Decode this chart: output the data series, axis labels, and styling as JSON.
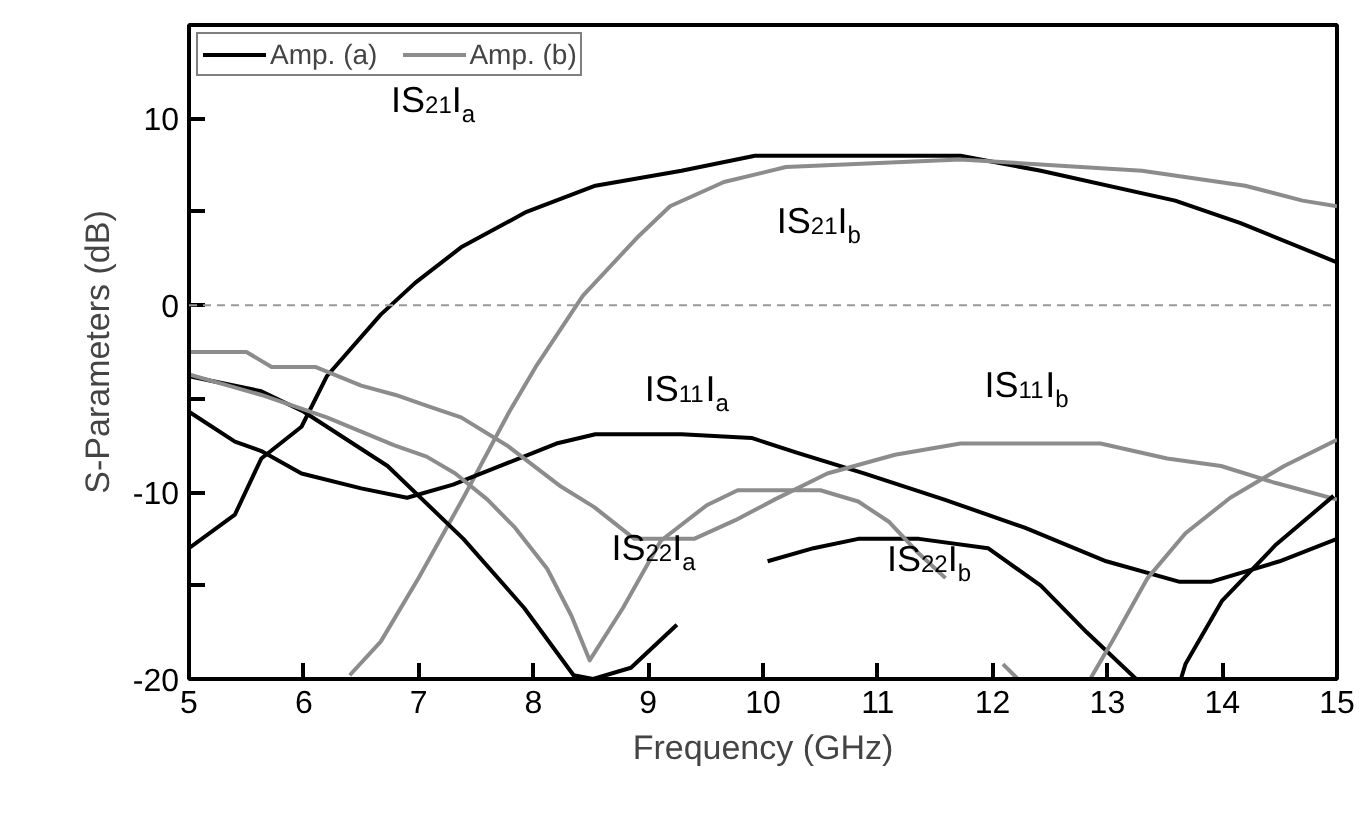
{
  "chart_data": {
    "type": "line",
    "xlabel": "Frequency (GHz)",
    "ylabel": "S-Parameters (dB)",
    "xlim": [
      5,
      15
    ],
    "ylim": [
      -20,
      15
    ],
    "xticks": [
      5,
      6,
      7,
      8,
      9,
      10,
      11,
      12,
      13,
      14,
      15
    ],
    "yticks": [
      -20,
      {
        "value": -15,
        "label": null
      },
      -10,
      {
        "value": -5,
        "label": null
      },
      0,
      {
        "value": 5,
        "label": null
      },
      10
    ],
    "grid": false,
    "legend": "top left",
    "line_style": "solid",
    "marker": "none",
    "ref_lines": [
      {
        "axis": "y",
        "value": 0,
        "color": "#999999",
        "line_style": "dashed"
      }
    ],
    "series": [
      {
        "name": "Amp. (a)",
        "color": "#000000",
        "x": [
          5,
          5.4,
          5.63,
          5.98,
          6.2,
          6.67,
          6.97,
          7.37,
          7.94,
          8.54,
          9.29,
          9.93,
          11.72,
          12.42,
          13.59,
          14.16,
          15
        ],
        "values": [
          -13,
          -11.2,
          -8.2,
          -6.5,
          -3.8,
          -0.5,
          1.2,
          3.1,
          5.0,
          6.4,
          7.2,
          8.0,
          8.0,
          7.2,
          5.6,
          4.4,
          2.3
        ]
      },
      {
        "name": "Amp. (b)",
        "color": "#8c8c8c",
        "x": [
          6.4,
          6.67,
          7.0,
          7.39,
          7.79,
          8.03,
          8.43,
          8.9,
          9.19,
          9.66,
          10.0,
          10.2,
          11.72,
          13.3,
          14.2,
          14.7,
          15
        ],
        "values": [
          -19.8,
          -18,
          -14.6,
          -10.3,
          -5.7,
          -3.2,
          0.5,
          3.6,
          5.3,
          6.6,
          7.1,
          7.4,
          7.8,
          7.2,
          6.4,
          5.6,
          5.3
        ]
      },
      {
        "color": "#000000",
        "x": [
          5,
          5.4,
          5.63,
          5.98,
          6.5,
          6.9,
          7.3,
          7.75,
          8.2,
          8.54,
          9.29,
          9.9,
          10.3,
          10.88,
          11.58,
          12.28,
          12.99,
          13.63,
          13.9,
          14.5,
          15
        ],
        "values": [
          -5.7,
          -7.3,
          -7.8,
          -9.0,
          -9.8,
          -10.3,
          -9.6,
          -8.5,
          -7.4,
          -6.9,
          -6.9,
          -7.1,
          -7.9,
          -9.0,
          -10.4,
          -11.9,
          -13.7,
          -14.8,
          -14.8,
          -13.7,
          -12.5
        ]
      },
      {
        "color": "#8c8c8c",
        "x": [
          5,
          5.5,
          5.72,
          6.1,
          6.5,
          6.8,
          7.08,
          7.37,
          7.77,
          8.24,
          8.53,
          8.88,
          9.4,
          9.76,
          10.1,
          10.56,
          11.15,
          11.72,
          12.94,
          13.52,
          13.99,
          14.46,
          15
        ],
        "values": [
          -2.5,
          -2.5,
          -3.3,
          -3.3,
          -4.3,
          -4.8,
          -5.4,
          -6.0,
          -7.5,
          -9.7,
          -10.8,
          -12.5,
          -12.5,
          -11.5,
          -10.4,
          -9.0,
          -8.0,
          -7.4,
          -7.4,
          -8.2,
          -8.6,
          -9.5,
          -10.4
        ]
      },
      {
        "color": "#000000",
        "x": [
          5,
          5.63,
          6.0,
          6.73,
          7.39,
          7.92,
          8.35,
          8.52,
          8.85,
          9.25,
          9.6,
          10.04,
          10.44,
          10.83,
          11.36,
          11.96,
          12.42,
          12.82,
          13.25,
          13.64,
          13.68,
          14.0,
          14.47,
          14.97
        ],
        "values": [
          -3.8,
          -4.6,
          -5.7,
          -8.6,
          -12.5,
          -16.2,
          -19.8,
          -20,
          -19.4,
          -17.1,
          null,
          -13.7,
          -13.0,
          -12.5,
          -12.5,
          -13.0,
          -15.0,
          -17.5,
          -20,
          -20,
          -19.2,
          -15.8,
          -12.8,
          -10.2
        ]
      },
      {
        "color": "#8c8c8c",
        "x": [
          5,
          5.63,
          6.2,
          6.79,
          7.07,
          7.32,
          7.6,
          7.84,
          8.12,
          8.33,
          8.49,
          8.78,
          9.11,
          9.51,
          9.78,
          10.5,
          10.83,
          11.1,
          11.36,
          11.59,
          11.85,
          12.09,
          12.22,
          12.85,
          13.05,
          13.35,
          13.68,
          14.07,
          14.54,
          15
        ],
        "values": [
          -3.7,
          -4.8,
          -6.0,
          -7.5,
          -8.1,
          -9.0,
          -10.4,
          -11.9,
          -14.1,
          -16.6,
          -19.0,
          -16.2,
          -12.6,
          -10.7,
          -9.9,
          -9.9,
          -10.5,
          -11.6,
          -13.3,
          -14.6,
          null,
          -19.2,
          -20,
          -20,
          -17.9,
          -14.6,
          -12.2,
          -10.3,
          -8.6,
          -7.2
        ]
      }
    ],
    "annotations": [
      "IS$_{21}$I$_{a}$",
      "IS$_{21}$I$_{b}$",
      "IS$_{11}$I$_{a}$",
      "IS$_{11}$I$_{b}$",
      "IS$_{22}$I$_{a}$",
      "IS$_{22}$I$_{b}$"
    ]
  }
}
